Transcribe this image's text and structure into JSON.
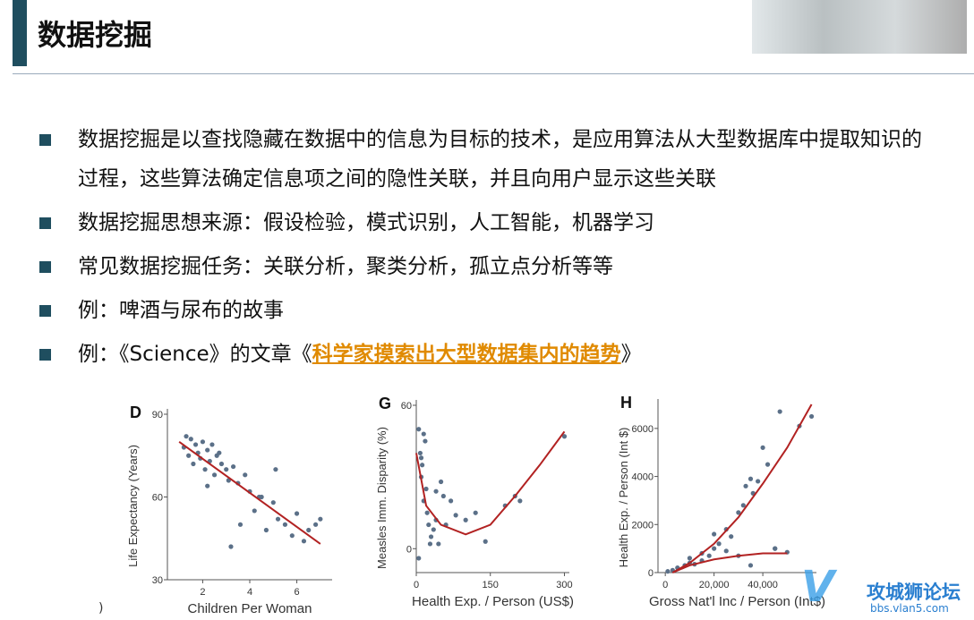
{
  "header": {
    "title": "数据挖掘"
  },
  "bullets": [
    {
      "text": "数据挖掘是以查找隐藏在数据中的信息为目标的技术，是应用算法从大型数据库中提取知识的过程，这些算法确定信息项之间的隐性关联，并且向用户显示这些关联"
    },
    {
      "text": "数据挖掘思想来源：假设检验，模式识别，人工智能，机器学习"
    },
    {
      "text": "常见数据挖掘任务：关联分析，聚类分析，孤立点分析等等"
    },
    {
      "text": "例：啤酒与尿布的故事"
    },
    {
      "text": "例：《Science》的文章《",
      "link": "科学家摸索出大型数据集内的趋势",
      "suffix": "》"
    }
  ],
  "footnote": ")",
  "watermark": {
    "name": "攻城狮论坛",
    "url": "bbs.vlan5.com"
  },
  "chart_data": [
    {
      "type": "scatter",
      "label": "D",
      "xlabel": "Children Per Woman",
      "ylabel": "Life Expectancy (Years)",
      "xlim": [
        0.5,
        7.5
      ],
      "ylim": [
        30,
        90
      ],
      "xticks": [
        2,
        4,
        6
      ],
      "yticks": [
        30,
        60,
        90
      ],
      "series": [
        {
          "type": "scatter",
          "color": "#5b7088",
          "x": [
            1.2,
            1.4,
            1.5,
            1.6,
            1.7,
            1.8,
            1.9,
            2.0,
            2.1,
            2.2,
            2.3,
            2.4,
            2.5,
            2.6,
            2.8,
            3.0,
            3.1,
            3.3,
            3.5,
            3.6,
            3.8,
            4.0,
            4.2,
            4.5,
            4.7,
            5.0,
            5.2,
            5.5,
            5.8,
            6.0,
            6.3,
            6.5,
            7.0,
            2.2,
            3.2,
            1.3,
            2.7,
            4.4,
            5.1,
            6.8
          ],
          "values": [
            78,
            75,
            81,
            72,
            79,
            76,
            74,
            80,
            70,
            77,
            73,
            79,
            68,
            75,
            72,
            70,
            66,
            71,
            65,
            50,
            68,
            62,
            55,
            60,
            48,
            58,
            52,
            50,
            46,
            54,
            44,
            48,
            52,
            64,
            42,
            82,
            76,
            60,
            70,
            50
          ]
        },
        {
          "type": "line",
          "color": "#b22222",
          "x": [
            1,
            7
          ],
          "values": [
            80,
            43
          ]
        }
      ]
    },
    {
      "type": "scatter",
      "label": "G",
      "xlabel": "Health Exp. / Person (US$)",
      "ylabel": "Measles Imm. Disparity (%)",
      "xlim": [
        0,
        310
      ],
      "ylim": [
        -10,
        60
      ],
      "xticks": [
        0,
        150,
        300
      ],
      "yticks": [
        0,
        60
      ],
      "series": [
        {
          "type": "scatter",
          "color": "#5b7088",
          "x": [
            5,
            8,
            10,
            12,
            15,
            18,
            20,
            22,
            25,
            30,
            35,
            40,
            45,
            50,
            55,
            60,
            70,
            80,
            100,
            120,
            140,
            180,
            200,
            210,
            300,
            5,
            10,
            15,
            28,
            40
          ],
          "values": [
            50,
            40,
            30,
            35,
            20,
            45,
            25,
            15,
            10,
            5,
            8,
            12,
            2,
            28,
            22,
            10,
            20,
            14,
            12,
            15,
            3,
            18,
            22,
            20,
            47,
            -4,
            38,
            48,
            2,
            24
          ]
        },
        {
          "type": "line",
          "color": "#b22222",
          "x": [
            0,
            20,
            50,
            100,
            150,
            200,
            250,
            300
          ],
          "values": [
            40,
            18,
            10,
            6,
            10,
            22,
            35,
            49
          ]
        }
      ]
    },
    {
      "type": "scatter",
      "label": "H",
      "xlabel": "Gross Nat'l Inc / Person (Int$)",
      "ylabel": "Health Exp. / Person (Int $)",
      "xlim": [
        -3000,
        62000
      ],
      "ylim": [
        0,
        7000
      ],
      "xticks": [
        0,
        {
          "value": 20000,
          "label": "20,000"
        },
        {
          "value": 40000,
          "label": "40,000"
        }
      ],
      "yticks": [
        0,
        2000,
        4000,
        6000
      ],
      "series": [
        {
          "type": "scatter",
          "color": "#5b7088",
          "x": [
            1000,
            3000,
            5000,
            8000,
            10000,
            12000,
            15000,
            18000,
            20000,
            22000,
            25000,
            27000,
            30000,
            32000,
            33000,
            35000,
            36000,
            38000,
            40000,
            42000,
            45000,
            47000,
            50000,
            55000,
            60000,
            20000,
            25000,
            30000,
            35000,
            45000,
            10000,
            15000
          ],
          "values": [
            50,
            100,
            200,
            300,
            400,
            350,
            500,
            700,
            1000,
            1200,
            1800,
            1500,
            2500,
            2800,
            3600,
            3900,
            3300,
            3800,
            5200,
            4500,
            1000,
            6700,
            850,
            6100,
            6500,
            1600,
            900,
            700,
            300,
            1000,
            600,
            800
          ]
        },
        {
          "type": "line",
          "color": "#b22222",
          "x": [
            3000,
            10000,
            20000,
            30000,
            40000,
            50000,
            60000
          ],
          "values": [
            0,
            400,
            1200,
            2300,
            3700,
            5200,
            7000
          ]
        },
        {
          "type": "line",
          "color": "#b22222",
          "x": [
            3000,
            10000,
            20000,
            30000,
            40000,
            50000
          ],
          "values": [
            0,
            300,
            550,
            700,
            800,
            800
          ]
        }
      ]
    }
  ]
}
